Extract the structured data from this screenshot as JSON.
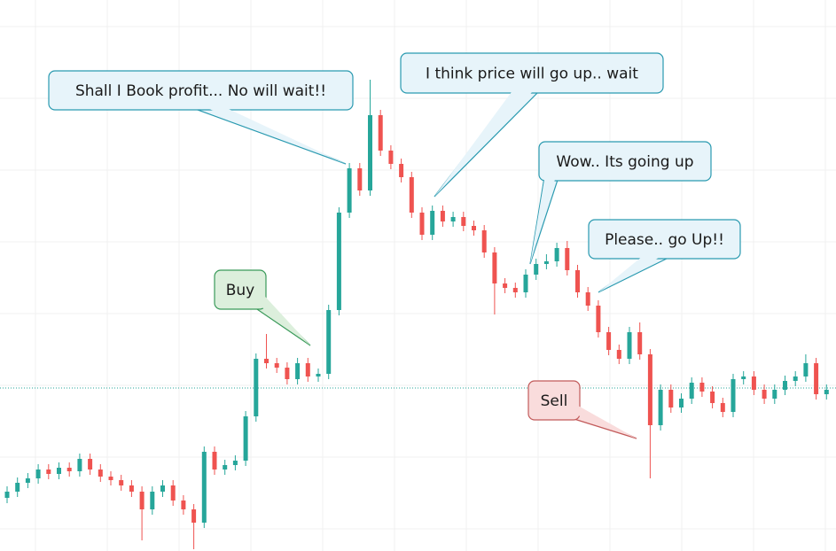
{
  "chart_data": {
    "type": "candlestick",
    "ylim": [
      0,
      622
    ],
    "grid": true,
    "up_color": "#26a69a",
    "down_color": "#ef5350",
    "price_line": 184,
    "open": [
      60,
      67,
      77,
      82,
      92,
      87,
      94,
      90,
      104,
      92,
      84,
      80,
      74,
      67,
      47,
      67,
      74,
      57,
      47,
      32,
      112,
      92,
      97,
      102,
      152,
      217,
      212,
      207,
      194,
      212,
      197,
      200,
      272,
      382,
      432,
      407,
      492,
      452,
      437,
      422,
      382,
      357,
      384,
      372,
      377,
      367,
      362,
      337,
      302,
      297,
      292,
      312,
      324,
      327,
      342,
      317,
      292,
      277,
      247,
      227,
      217,
      247,
      222,
      142,
      182,
      162,
      172,
      190,
      180,
      167,
      157,
      194,
      197,
      182,
      172,
      182,
      192,
      197,
      212,
      177
    ],
    "high": [
      73,
      83,
      88,
      98,
      98,
      100,
      100,
      110,
      110,
      98,
      90,
      86,
      80,
      73,
      73,
      80,
      80,
      63,
      53,
      118,
      118,
      103,
      108,
      158,
      223,
      245,
      218,
      213,
      218,
      218,
      206,
      278,
      388,
      438,
      438,
      532,
      498,
      458,
      443,
      428,
      388,
      390,
      390,
      383,
      383,
      373,
      368,
      343,
      308,
      303,
      318,
      330,
      335,
      348,
      350,
      323,
      298,
      283,
      253,
      233,
      253,
      258,
      228,
      188,
      188,
      178,
      196,
      196,
      186,
      173,
      200,
      203,
      203,
      188,
      188,
      198,
      203,
      222,
      218,
      188
    ],
    "low": [
      54,
      61,
      71,
      76,
      81,
      81,
      84,
      84,
      86,
      78,
      74,
      68,
      61,
      12,
      41,
      61,
      51,
      41,
      2,
      26,
      86,
      86,
      91,
      96,
      146,
      206,
      201,
      188,
      188,
      191,
      191,
      194,
      266,
      376,
      401,
      401,
      446,
      431,
      416,
      376,
      351,
      351,
      366,
      366,
      361,
      356,
      331,
      267,
      291,
      286,
      286,
      306,
      318,
      321,
      311,
      286,
      271,
      241,
      221,
      211,
      211,
      216,
      82,
      136,
      156,
      156,
      166,
      174,
      161,
      151,
      151,
      188,
      176,
      166,
      166,
      176,
      186,
      191,
      171,
      171
    ],
    "close": [
      67,
      77,
      82,
      92,
      87,
      94,
      90,
      104,
      92,
      84,
      80,
      74,
      67,
      47,
      67,
      74,
      57,
      47,
      32,
      112,
      92,
      97,
      102,
      152,
      217,
      212,
      207,
      194,
      212,
      197,
      200,
      272,
      382,
      432,
      407,
      492,
      452,
      437,
      422,
      382,
      357,
      384,
      372,
      377,
      367,
      362,
      337,
      302,
      297,
      292,
      312,
      324,
      327,
      342,
      317,
      292,
      277,
      247,
      227,
      217,
      247,
      222,
      142,
      182,
      162,
      172,
      190,
      180,
      167,
      157,
      194,
      197,
      182,
      172,
      182,
      192,
      197,
      212,
      177,
      182
    ],
    "annotations": [
      {
        "text": "Shall I Book profit... No will wait!!",
        "fill": "#e7f4fa",
        "border": "#2a9ab0"
      },
      {
        "text": "I think price will go up.. wait",
        "fill": "#e7f4fa",
        "border": "#2a9ab0"
      },
      {
        "text": "Wow.. Its going up",
        "fill": "#e7f4fa",
        "border": "#2a9ab0"
      },
      {
        "text": "Please.. go Up!!",
        "fill": "#e7f4fa",
        "border": "#2a9ab0"
      },
      {
        "text": "Buy",
        "fill": "#dcefdc",
        "border": "#3a9a5a"
      },
      {
        "text": "Sell",
        "fill": "#f9dcdc",
        "border": "#c25a5a"
      }
    ]
  }
}
